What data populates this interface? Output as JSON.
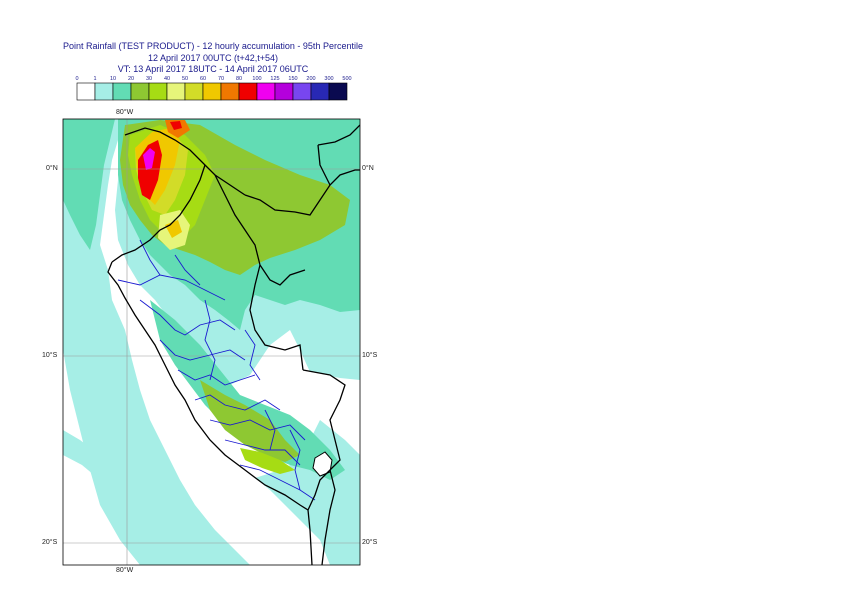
{
  "header": {
    "title_line1": "Point Rainfall (TEST PRODUCT) - 12 hourly accumulation - 95th Percentile",
    "title_line2": "12 April 2017 00UTC (t+42,t+54)",
    "title_line3": "VT: 13 April 2017 18UTC - 14 April 2017 06UTC"
  },
  "legend": {
    "thresholds": [
      "0",
      "1",
      "10",
      "20",
      "30",
      "40",
      "50",
      "60",
      "70",
      "80",
      "100",
      "125",
      "150",
      "200",
      "300",
      "500"
    ],
    "colors": [
      "#ffffff",
      "#a6eee6",
      "#62dcb4",
      "#8ec832",
      "#a6dc14",
      "#e6f57a",
      "#d2dc28",
      "#f0c800",
      "#f07800",
      "#f00000",
      "#f000f0",
      "#b400dc",
      "#7846f0",
      "#2828b4",
      "#0a0a50"
    ]
  },
  "axes": {
    "lon_top": "80°W",
    "lon_bottom": "80°W",
    "lat_labels": [
      {
        "left": "0°N",
        "right": "0°N"
      },
      {
        "left": "10°S",
        "right": "10°S"
      },
      {
        "left": "20°S",
        "right": "20°S"
      }
    ]
  },
  "map": {
    "region": "Peru",
    "color_scale_low": "#a6eee6",
    "color_scale_mid": "#62dcb4",
    "color_scale_high": "#8ec832"
  }
}
